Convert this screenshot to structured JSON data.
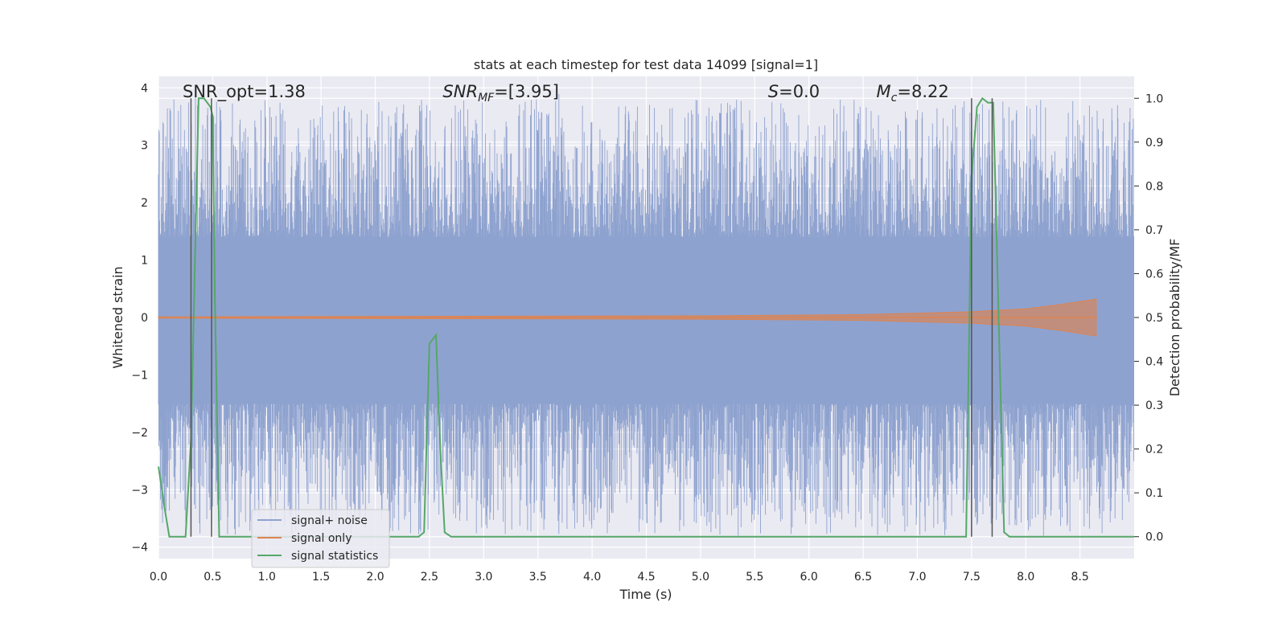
{
  "chart_data": {
    "type": "line",
    "title": "stats at each timestep for test data 14099 [signal=1]",
    "xlabel": "Time (s)",
    "ylabel_left": "Whitened strain",
    "ylabel_right": "Detection probability/MF",
    "xlim": [
      0.0,
      9.0
    ],
    "ylim_left": [
      -4.2,
      4.2
    ],
    "ylim_right": [
      -0.05,
      1.05
    ],
    "x_ticks": [
      "0.0",
      "0.5",
      "1.0",
      "1.5",
      "2.0",
      "2.5",
      "3.0",
      "3.5",
      "4.0",
      "4.5",
      "5.0",
      "5.5",
      "6.0",
      "6.5",
      "7.0",
      "7.5",
      "8.0",
      "8.5"
    ],
    "y_ticks_left": [
      "4",
      "3",
      "2",
      "1",
      "0",
      "−1",
      "−2",
      "−3",
      "−4"
    ],
    "y_ticks_right": [
      "1.0",
      "0.9",
      "0.8",
      "0.7",
      "0.6",
      "0.5",
      "0.4",
      "0.3",
      "0.2",
      "0.1",
      "0.0"
    ],
    "grid": true,
    "legend_position": "lower-left",
    "annotations": [
      {
        "key": "snr_opt",
        "prefix": "SNR_opt",
        "value": "=1.38",
        "x": 0.2
      },
      {
        "key": "snr_mf",
        "prefix": "SNR",
        "sub": "MF",
        "value": "=[3.95]",
        "x": 2.6
      },
      {
        "key": "s",
        "prefix": "S",
        "value": "=0.0",
        "x": 5.6
      },
      {
        "key": "mc",
        "prefix": "M",
        "sub": "c",
        "value": "=8.22",
        "x": 6.6
      }
    ],
    "series": [
      {
        "name": "signal+ noise",
        "color": "#8ea2cf",
        "band_core": [
          -1.5,
          1.4
        ],
        "spike_max": [
          3.9,
          -4.0
        ],
        "time_range": [
          0.0,
          9.0
        ]
      },
      {
        "name": "signal only",
        "color": "#dd8452",
        "envelope": [
          [
            0.0,
            0.01
          ],
          [
            5.0,
            0.03
          ],
          [
            6.5,
            0.05
          ],
          [
            7.5,
            0.1
          ],
          [
            8.0,
            0.15
          ],
          [
            8.3,
            0.22
          ],
          [
            8.65,
            0.32
          ]
        ],
        "end_time": 8.66
      },
      {
        "name": "signal statistics",
        "color": "#55a868",
        "axis": "right",
        "x": [
          0.0,
          0.06,
          0.1,
          0.25,
          0.3,
          0.37,
          0.42,
          0.48,
          0.5,
          0.52,
          0.56,
          0.9,
          2.4,
          2.45,
          2.5,
          2.56,
          2.6,
          2.64,
          2.7,
          3.7,
          3.8,
          7.45,
          7.5,
          7.55,
          7.6,
          7.65,
          7.7,
          7.75,
          7.8,
          7.85,
          9.0
        ],
        "y": [
          0.16,
          0.06,
          0.0,
          0.0,
          0.22,
          1.0,
          1.0,
          0.98,
          0.96,
          0.55,
          0.0,
          0.0,
          0.0,
          0.01,
          0.44,
          0.46,
          0.2,
          0.01,
          0.0,
          0.0,
          0.0,
          0.0,
          0.82,
          0.98,
          1.0,
          0.99,
          0.99,
          0.5,
          0.01,
          0.0,
          0.0
        ]
      }
    ],
    "vertical_markers": [
      0.3,
      0.49,
      7.5,
      7.69
    ]
  }
}
